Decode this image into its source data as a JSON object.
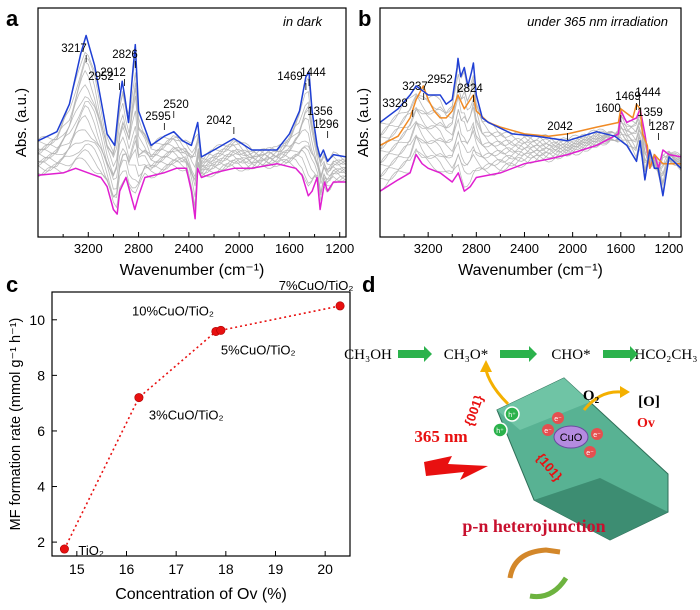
{
  "panels": {
    "a": "a",
    "b": "b",
    "c": "c",
    "d": "d"
  },
  "colors": {
    "blue": "#1f3fd4",
    "magenta": "#e01fd0",
    "orange": "#f08a24",
    "gray": "#b4b4b4",
    "red": "#e81010",
    "green": "#2bb24c",
    "crystal": "#58b293"
  },
  "chart_data": [
    {
      "id": "a",
      "type": "line",
      "annotation": "in dark",
      "xlabel": "Wavenumber (cm⁻¹)",
      "ylabel": "Abs. (a.u.)",
      "xlim": [
        3600,
        1150
      ],
      "xticks": [
        3200,
        2800,
        2400,
        2000,
        1600,
        1200
      ],
      "peak_labels": [
        3217,
        2952,
        2912,
        2826,
        2595,
        2520,
        2042,
        1469,
        1444,
        1356,
        1296
      ],
      "series": [
        {
          "name": "blue",
          "x": [
            3600,
            3450,
            3350,
            3260,
            3217,
            3150,
            3050,
            2990,
            2952,
            2930,
            2912,
            2880,
            2850,
            2826,
            2800,
            2700,
            2595,
            2520,
            2450,
            2380,
            2330,
            2300,
            2200,
            2042,
            1900,
            1700,
            1600,
            1520,
            1469,
            1444,
            1420,
            1380,
            1356,
            1330,
            1296,
            1250,
            1150
          ],
          "y": [
            0.42,
            0.46,
            0.58,
            0.8,
            0.88,
            0.75,
            0.45,
            0.4,
            0.6,
            0.68,
            0.62,
            0.5,
            0.7,
            0.84,
            0.55,
            0.4,
            0.44,
            0.46,
            0.42,
            0.4,
            0.5,
            0.35,
            0.38,
            0.43,
            0.38,
            0.38,
            0.45,
            0.55,
            0.7,
            0.72,
            0.55,
            0.4,
            0.35,
            0.38,
            0.33,
            0.36,
            0.35
          ]
        },
        {
          "name": "magenta",
          "x": [
            3600,
            3400,
            3300,
            3200,
            3100,
            3050,
            3000,
            2970,
            2950,
            2900,
            2830,
            2800,
            2750,
            2600,
            2500,
            2420,
            2380,
            2350,
            2330,
            2300,
            2200,
            2042,
            1900,
            1700,
            1550,
            1500,
            1450,
            1420,
            1380,
            1356,
            1320,
            1296,
            1250,
            1150
          ],
          "y": [
            0.27,
            0.28,
            0.3,
            0.28,
            0.26,
            0.22,
            0.12,
            0.1,
            0.2,
            0.26,
            0.12,
            0.18,
            0.26,
            0.28,
            0.3,
            0.3,
            0.2,
            0.08,
            0.3,
            0.26,
            0.28,
            0.3,
            0.3,
            0.32,
            0.3,
            0.27,
            0.18,
            0.2,
            0.26,
            0.12,
            0.24,
            0.2,
            0.24,
            0.24
          ]
        }
      ]
    },
    {
      "id": "b",
      "type": "line",
      "annotation": "under 365 nm irradiation",
      "xlabel": "Wavenumber (cm⁻¹)",
      "ylabel": "Abs. (a.u.)",
      "xlim": [
        3600,
        1100
      ],
      "xticks": [
        3200,
        2800,
        2400,
        2000,
        1600,
        1200
      ],
      "peak_labels": [
        3328,
        3237,
        2952,
        2824,
        2042,
        1600,
        1469,
        1444,
        1359,
        1287
      ],
      "series": [
        {
          "name": "blue",
          "x": [
            3600,
            3450,
            3350,
            3300,
            3250,
            3200,
            3100,
            3050,
            3000,
            2960,
            2952,
            2930,
            2900,
            2870,
            2840,
            2824,
            2800,
            2750,
            2700,
            2500,
            2300,
            2042,
            1800,
            1650,
            1550,
            1470,
            1440,
            1400,
            1360,
            1320,
            1290,
            1250,
            1200,
            1100
          ],
          "y": [
            0.5,
            0.56,
            0.62,
            0.66,
            0.64,
            0.62,
            0.62,
            0.58,
            0.6,
            0.74,
            0.78,
            0.7,
            0.74,
            0.66,
            0.72,
            0.76,
            0.62,
            0.52,
            0.5,
            0.45,
            0.44,
            0.42,
            0.46,
            0.44,
            0.4,
            0.33,
            0.42,
            0.25,
            0.38,
            0.3,
            0.3,
            0.18,
            0.35,
            0.3
          ]
        },
        {
          "name": "orange",
          "x": [
            3600,
            3450,
            3350,
            3300,
            3240,
            3200,
            3150,
            3100,
            3050,
            3000,
            2952,
            2900,
            2850,
            2824,
            2800,
            2700,
            2600,
            2400,
            2200,
            2042,
            1800,
            1620,
            1600,
            1500,
            1470,
            1440,
            1420,
            1380,
            1359,
            1320,
            1287,
            1250,
            1100
          ],
          "y": [
            0.4,
            0.44,
            0.52,
            0.6,
            0.66,
            0.6,
            0.55,
            0.52,
            0.52,
            0.55,
            0.62,
            0.56,
            0.6,
            0.62,
            0.55,
            0.5,
            0.48,
            0.45,
            0.44,
            0.45,
            0.48,
            0.5,
            0.56,
            0.52,
            0.58,
            0.56,
            0.45,
            0.4,
            0.3,
            0.36,
            0.34,
            0.32,
            0.32
          ]
        },
        {
          "name": "magenta",
          "x": [
            3600,
            3450,
            3350,
            3300,
            3250,
            3200,
            3100,
            3000,
            2950,
            2900,
            2850,
            2800,
            2600,
            2400,
            2200,
            2042,
            1800,
            1620,
            1600,
            1550,
            1470,
            1440,
            1400,
            1380,
            1359,
            1320,
            1287,
            1250,
            1200,
            1100
          ],
          "y": [
            0.2,
            0.25,
            0.28,
            0.36,
            0.32,
            0.3,
            0.28,
            0.24,
            0.28,
            0.2,
            0.22,
            0.26,
            0.28,
            0.32,
            0.34,
            0.36,
            0.4,
            0.45,
            0.55,
            0.5,
            0.52,
            0.56,
            0.45,
            0.38,
            0.3,
            0.36,
            0.3,
            0.38,
            0.36,
            0.35
          ]
        }
      ]
    },
    {
      "id": "c",
      "type": "scatter",
      "xlabel": "Concentration of Ov (%)",
      "ylabel": "MF formation rate (mmol g⁻¹ h⁻¹)",
      "xlim": [
        14.5,
        20.5
      ],
      "ylim": [
        1.5,
        11
      ],
      "xticks": [
        15,
        16,
        17,
        18,
        19,
        20
      ],
      "yticks": [
        2,
        4,
        6,
        8,
        10
      ],
      "series": [
        {
          "x": [
            14.75,
            16.25,
            17.8,
            17.9,
            20.3
          ],
          "y": [
            1.75,
            7.2,
            9.58,
            9.62,
            10.5
          ]
        }
      ],
      "point_labels": [
        "TiO₂",
        "3%CuO/TiO₂",
        "10%CuO/TiO₂",
        "5%CuO/TiO₂",
        "7%CuO/TiO₂"
      ],
      "grid": false
    }
  ],
  "scheme": {
    "reaction": [
      "CH₃OH",
      "CH₃O*",
      "CHO*",
      "HCO₂CH₃"
    ],
    "o2": "O₂",
    "o_label": "[O]",
    "ov": "Ov",
    "facet001": "{001}",
    "facet101": "{101}",
    "light": "365 nm",
    "cuo": "CuO",
    "h_label": "h⁺",
    "e_label": "e⁻",
    "heterojunction": "p-n heterojunction"
  }
}
